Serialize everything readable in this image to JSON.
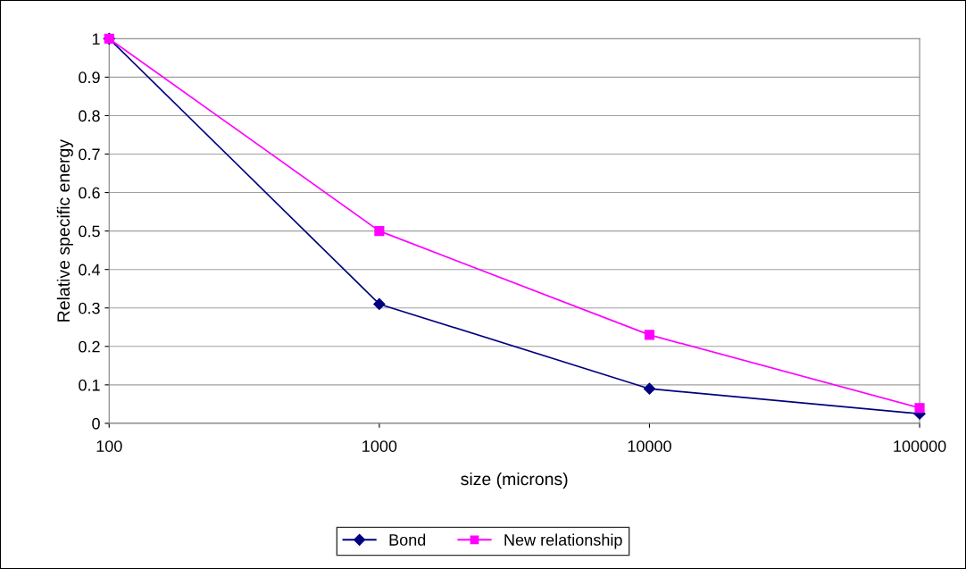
{
  "chart_data": {
    "type": "line",
    "xlabel": "size (microns)",
    "ylabel": "Relative specific energy",
    "x": [
      100,
      1000,
      10000,
      100000
    ],
    "series": [
      {
        "name": "Bond",
        "color": "#000080",
        "values": [
          1,
          0.31,
          0.09,
          0.025
        ],
        "marker": "diamond"
      },
      {
        "name": "New relationship",
        "color": "#ff00ff",
        "values": [
          1,
          0.5,
          0.23,
          0.04
        ],
        "marker": "square"
      }
    ],
    "log": "x",
    "xlim": [
      100,
      100000
    ],
    "xticks": [
      100,
      1000,
      10000,
      100000
    ],
    "ylim": [
      0,
      1
    ],
    "yticks": [
      0,
      0.1,
      0.2,
      0.3,
      0.4,
      0.5,
      0.6,
      0.7,
      0.8,
      0.9,
      1
    ],
    "grid": "y",
    "legend": "bottom",
    "line_style": "solid"
  }
}
